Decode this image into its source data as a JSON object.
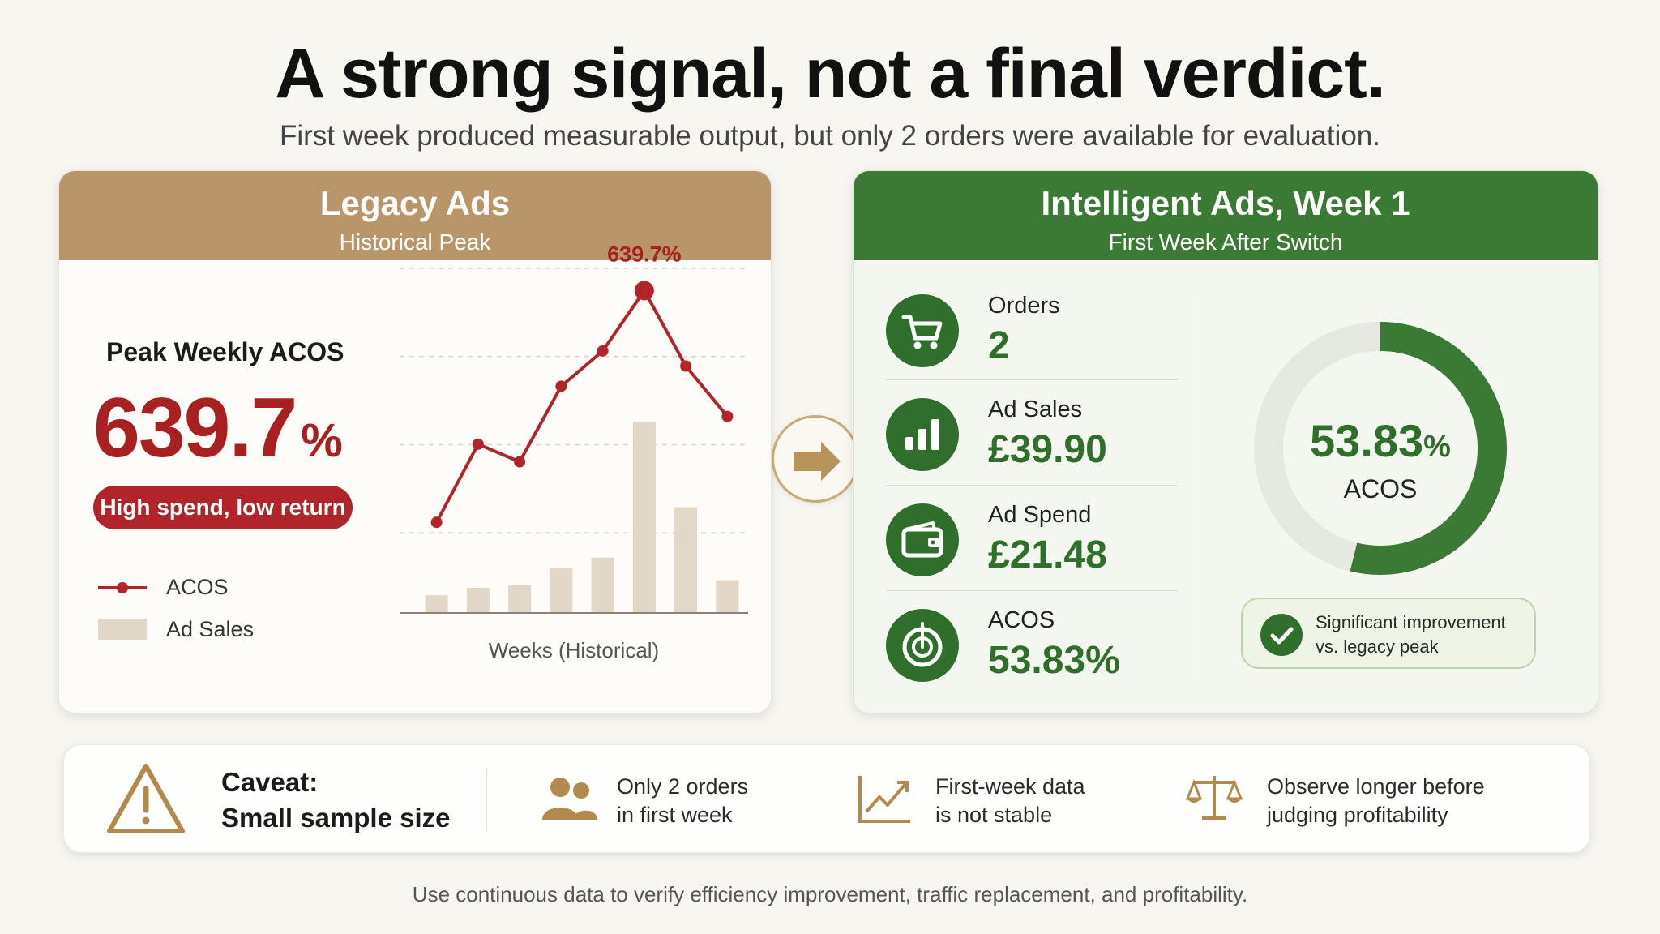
{
  "title": "A strong signal, not a final verdict.",
  "subtitle": "First week produced measurable output, but only 2 orders were available for evaluation.",
  "legacy": {
    "header_title": "Legacy Ads",
    "header_sub": "Historical Peak",
    "peak_label": "Peak Weekly ACOS",
    "peak_value": "639.7",
    "peak_unit": "%",
    "pill": "High spend, low return",
    "legend_acos": "ACOS",
    "legend_sales": "Ad Sales",
    "accent": "#a8201f",
    "header_color": "#b8966a"
  },
  "intelligent": {
    "header_title": "Intelligent Ads, Week 1",
    "header_sub": "First Week After Switch",
    "header_color": "#3b7a34",
    "metrics": [
      {
        "label": "Orders",
        "value": "2",
        "icon": "cart-icon"
      },
      {
        "label": "Ad Sales",
        "value": "£39.90",
        "icon": "bar-chart-icon"
      },
      {
        "label": "Ad Spend",
        "value": "£21.48",
        "icon": "wallet-icon"
      },
      {
        "label": "ACOS",
        "value": "53.83%",
        "icon": "target-icon"
      }
    ],
    "donut_value": "53.83",
    "donut_unit": "%",
    "donut_label": "ACOS",
    "donut_fraction": 0.5383,
    "badge_line1": "Significant improvement",
    "badge_line2": "vs. legacy peak"
  },
  "caveat": {
    "title_line1": "Caveat:",
    "title_line2": "Small sample size",
    "items": [
      {
        "line1": "Only 2 orders",
        "line2": "in first week",
        "icon": "people-icon"
      },
      {
        "line1": "First-week data",
        "line2": "is not stable",
        "icon": "trend-chart-icon"
      },
      {
        "line1": "Observe longer before",
        "line2": "judging profitability",
        "icon": "scales-icon"
      }
    ]
  },
  "footer": "Use continuous data to verify efficiency improvement, traffic replacement, and profitability.",
  "chart_data": {
    "type": "bar",
    "xlabel": "Weeks (Historical)",
    "ylabel": "",
    "categories": [
      "",
      "",
      "",
      "",
      "",
      "",
      "",
      ""
    ],
    "series": [
      {
        "name": "ACOS",
        "type": "line",
        "values": [
          180,
          335,
          300,
          450,
          520,
          639.7,
          490,
          390
        ]
      },
      {
        "name": "Ad Sales",
        "type": "bar",
        "values": [
          35,
          50,
          55,
          90,
          110,
          380,
          210,
          65
        ]
      }
    ],
    "annotation": "639.7%",
    "annotation_index": 5,
    "ylim": [
      0,
      700
    ],
    "grid": true,
    "colors": {
      "line": "#b0242a",
      "bar": "#e3d8c7"
    }
  }
}
